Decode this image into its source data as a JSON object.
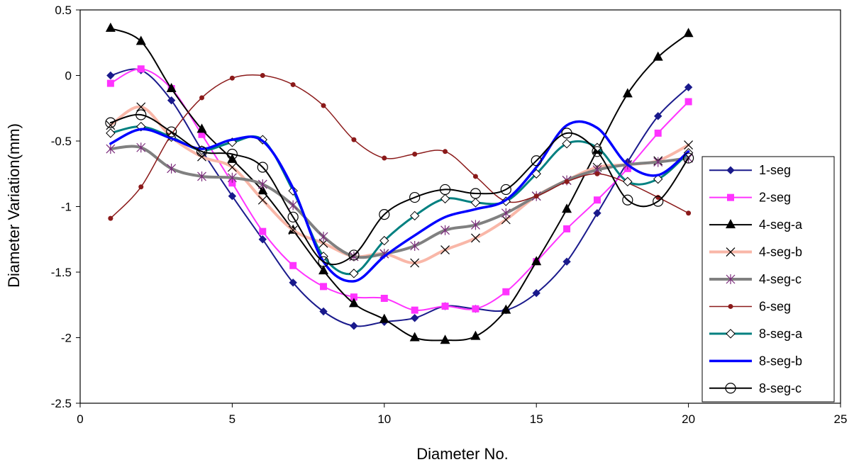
{
  "chart_data": {
    "type": "line",
    "xlabel": "Diameter No.",
    "ylabel": "Diameter Variation(mm)",
    "xlim": [
      0,
      25
    ],
    "ylim": [
      -2.5,
      0.5
    ],
    "xticks": [
      0,
      5,
      10,
      15,
      20,
      25
    ],
    "yticks": [
      0.5,
      0,
      -0.5,
      -1,
      -1.5,
      -2,
      -2.5
    ],
    "xtick_labels": [
      "0",
      "5",
      "10",
      "15",
      "20",
      "25"
    ],
    "ytick_labels": [
      "0.5",
      "0",
      "-0.5",
      "-1",
      "-1.5",
      "-2",
      "-2.5"
    ],
    "grid": false,
    "legend_position": "right",
    "x": [
      1,
      2,
      3,
      4,
      5,
      6,
      7,
      8,
      9,
      10,
      11,
      12,
      13,
      14,
      15,
      16,
      17,
      18,
      19,
      20
    ],
    "series": [
      {
        "name": "1-seg",
        "color": "#1a1a8c",
        "marker": "diamond-filled",
        "width": 2,
        "values": [
          0.0,
          0.04,
          -0.19,
          -0.57,
          -0.92,
          -1.25,
          -1.58,
          -1.8,
          -1.91,
          -1.88,
          -1.85,
          -1.76,
          -1.78,
          -1.79,
          -1.66,
          -1.42,
          -1.05,
          -0.66,
          -0.31,
          -0.09
        ]
      },
      {
        "name": "2-seg",
        "color": "#ff33ff",
        "marker": "square-filled",
        "width": 2,
        "values": [
          -0.06,
          0.05,
          -0.1,
          -0.45,
          -0.82,
          -1.19,
          -1.45,
          -1.61,
          -1.69,
          -1.7,
          -1.79,
          -1.76,
          -1.78,
          -1.65,
          -1.42,
          -1.17,
          -0.95,
          -0.71,
          -0.44,
          -0.2
        ]
      },
      {
        "name": "4-seg-a",
        "color": "#000000",
        "marker": "triangle-filled",
        "width": 2,
        "values": [
          0.36,
          0.26,
          -0.1,
          -0.41,
          -0.64,
          -0.88,
          -1.18,
          -1.49,
          -1.74,
          -1.86,
          -2.0,
          -2.02,
          -1.99,
          -1.79,
          -1.42,
          -1.02,
          -0.57,
          -0.14,
          0.14,
          0.32
        ]
      },
      {
        "name": "4-seg-b",
        "color": "#f9b7a8",
        "marker": "x",
        "width": 4,
        "values": [
          -0.38,
          -0.24,
          -0.47,
          -0.62,
          -0.7,
          -0.95,
          -1.18,
          -1.28,
          -1.38,
          -1.36,
          -1.43,
          -1.33,
          -1.24,
          -1.1,
          -0.92,
          -0.8,
          -0.7,
          -0.68,
          -0.65,
          -0.53
        ]
      },
      {
        "name": "4-seg-c",
        "color": "#808080",
        "marker": "asterisk",
        "width": 4,
        "values": [
          -0.56,
          -0.55,
          -0.71,
          -0.77,
          -0.78,
          -0.83,
          -0.99,
          -1.23,
          -1.38,
          -1.36,
          -1.3,
          -1.18,
          -1.14,
          -1.05,
          -0.92,
          -0.8,
          -0.72,
          -0.68,
          -0.66,
          -0.63
        ]
      },
      {
        "name": "6-seg",
        "color": "#8b1a1a",
        "marker": "circle-filled",
        "width": 1.5,
        "values": [
          -1.09,
          -0.85,
          -0.45,
          -0.17,
          -0.02,
          0.0,
          -0.07,
          -0.23,
          -0.49,
          -0.63,
          -0.6,
          -0.58,
          -0.77,
          -0.96,
          -0.92,
          -0.81,
          -0.75,
          -0.82,
          -0.93,
          -1.05
        ]
      },
      {
        "name": "8-seg-a",
        "color": "#008080",
        "marker": "diamond-open",
        "width": 3,
        "values": [
          -0.44,
          -0.39,
          -0.47,
          -0.57,
          -0.51,
          -0.49,
          -0.88,
          -1.38,
          -1.51,
          -1.26,
          -1.07,
          -0.94,
          -0.97,
          -0.96,
          -0.75,
          -0.52,
          -0.55,
          -0.81,
          -0.79,
          -0.59
        ]
      },
      {
        "name": "8-seg-b",
        "color": "#0000ff",
        "marker": "none",
        "width": 3.5,
        "values": [
          -0.52,
          -0.41,
          -0.48,
          -0.56,
          -0.49,
          -0.5,
          -0.86,
          -1.42,
          -1.57,
          -1.38,
          -1.22,
          -1.08,
          -1.02,
          -0.95,
          -0.7,
          -0.38,
          -0.4,
          -0.68,
          -0.76,
          -0.58
        ]
      },
      {
        "name": "8-seg-c",
        "color": "#000000",
        "marker": "circle-open",
        "width": 2,
        "values": [
          -0.36,
          -0.3,
          -0.43,
          -0.58,
          -0.6,
          -0.7,
          -1.08,
          -1.42,
          -1.37,
          -1.06,
          -0.93,
          -0.87,
          -0.9,
          -0.87,
          -0.65,
          -0.44,
          -0.58,
          -0.95,
          -0.96,
          -0.63
        ]
      }
    ]
  }
}
